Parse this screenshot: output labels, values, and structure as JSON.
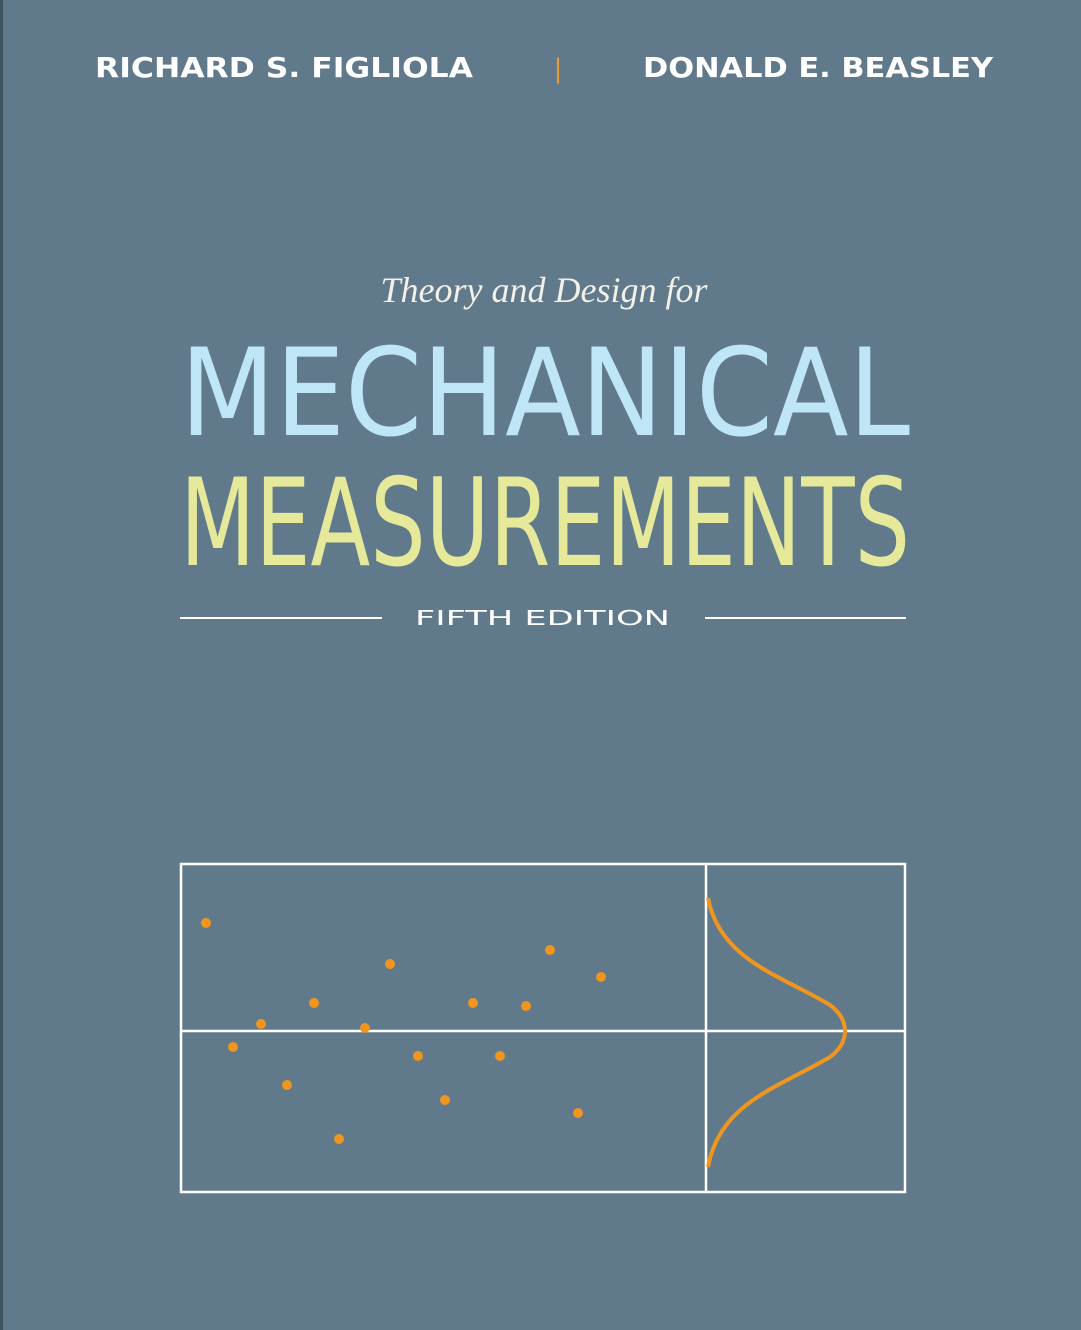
{
  "authors": [
    "RICHARD S. FIGLIOLA",
    "DONALD E. BEASLEY"
  ],
  "separator": "|",
  "subtitle": "Theory and Design for",
  "title": [
    "MECHANICAL",
    "MEASUREMENTS"
  ],
  "edition": "FIFTH EDITION"
}
